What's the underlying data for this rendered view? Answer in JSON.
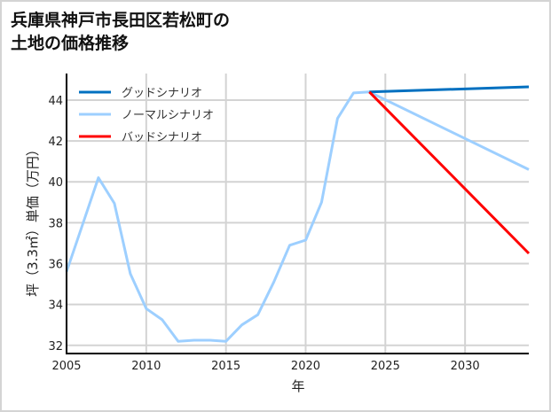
{
  "title": {
    "line1": "兵庫県神戸市長田区若松町の",
    "line2": "土地の価格推移"
  },
  "colors": {
    "good": "#0070C0",
    "normal": "#9DCFFF",
    "bad": "#FF0000",
    "grid": "#D3D3D3",
    "axis": "#000000"
  },
  "chart_data": {
    "type": "line",
    "title": "兵庫県神戸市長田区若松町の土地の価格推移",
    "xlabel": "年",
    "ylabel": "坪（3.3㎡）単価（万円）",
    "xlim": [
      2005,
      2034
    ],
    "ylim": [
      31.6,
      45.3
    ],
    "xticks": [
      2005,
      2010,
      2015,
      2020,
      2025,
      2030
    ],
    "yticks": [
      32,
      34,
      36,
      38,
      40,
      42,
      44
    ],
    "grid": true,
    "legend_position": "upper left",
    "series": [
      {
        "name": "グッドシナリオ",
        "color": "#0070C0",
        "x": [
          2024,
          2034
        ],
        "values": [
          44.4,
          44.65
        ]
      },
      {
        "name": "ノーマルシナリオ",
        "color": "#9DCFFF",
        "x": [
          2005,
          2006,
          2007,
          2008,
          2009,
          2010,
          2011,
          2012,
          2013,
          2014,
          2015,
          2016,
          2017,
          2018,
          2019,
          2020,
          2021,
          2022,
          2023,
          2024,
          2034
        ],
        "values": [
          35.6,
          37.9,
          40.2,
          38.95,
          35.5,
          33.8,
          33.25,
          32.2,
          32.25,
          32.25,
          32.2,
          33.0,
          33.5,
          35.1,
          36.9,
          37.15,
          39.0,
          43.1,
          44.35,
          44.4,
          40.6
        ]
      },
      {
        "name": "バッドシナリオ",
        "color": "#FF0000",
        "x": [
          2024,
          2034
        ],
        "values": [
          44.4,
          36.5
        ]
      }
    ]
  }
}
